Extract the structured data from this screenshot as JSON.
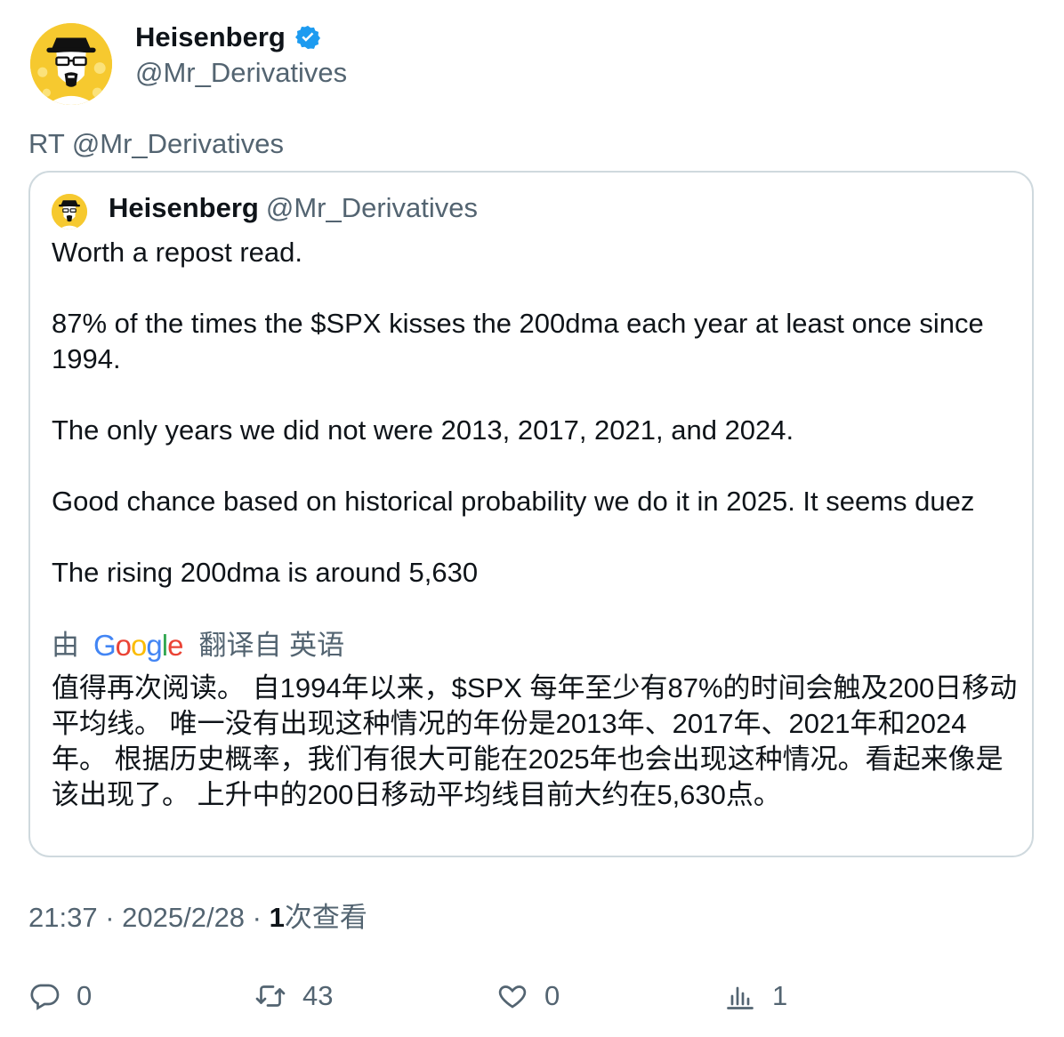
{
  "tweet": {
    "author_name": "Heisenberg",
    "author_handle": "@Mr_Derivatives",
    "rt_line": "RT @Mr_Derivatives",
    "avatar_icon": "heisenberg-avatar-icon",
    "verified_icon": "verified-badge-icon",
    "accent_color": "#1d9bf0"
  },
  "quote": {
    "author_name": "Heisenberg",
    "author_handle": "@Mr_Derivatives",
    "paragraphs": [
      "Worth a repost read.",
      "87% of the times the $SPX kisses the 200dma each year at least once since 1994.",
      "The only years we did not were 2013, 2017, 2021, and 2024.",
      "Good chance based on historical probability we do it in 2025. It seems duez",
      "The rising 200dma is around 5,630"
    ],
    "translate": {
      "by": "由",
      "provider": "Google",
      "from_label": "翻译自 英语",
      "text": "值得再次阅读。 自1994年以来，$SPX 每年至少有87%的时间会触及200日移动平均线。 唯一没有出现这种情况的年份是2013年、2017年、2021年和2024年。 根据历史概率，我们有很大可能在2025年也会出现这种情况。看起来像是该出现了。 上升中的200日移动平均线目前大约在5,630点。"
    }
  },
  "meta": {
    "time": "21:37",
    "sep1": " · ",
    "date": "2025/2/28",
    "sep2": " · ",
    "views_count": "1",
    "views_label": "次查看"
  },
  "actions": {
    "reply_count": "0",
    "retweet_count": "43",
    "like_count": "0",
    "views_count": "1"
  }
}
